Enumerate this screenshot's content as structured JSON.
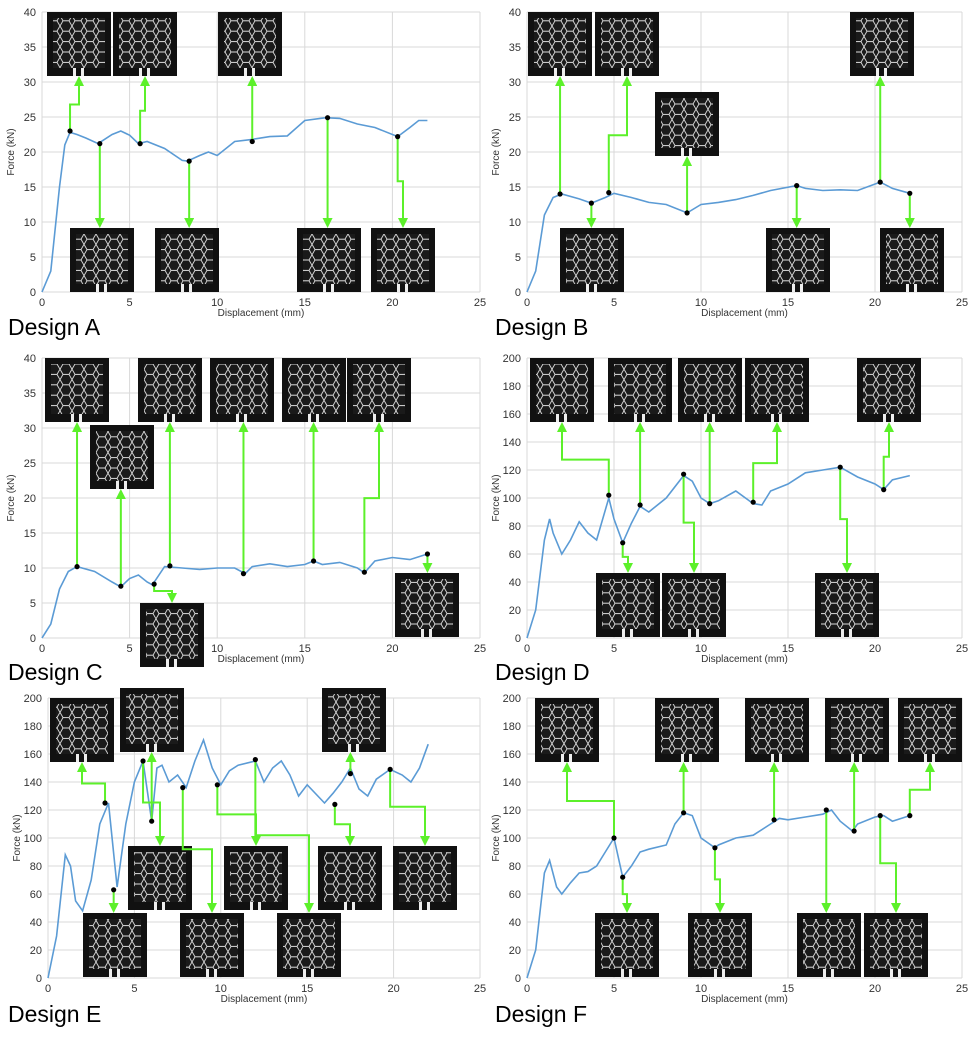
{
  "chart_data": [
    {
      "type": "line",
      "title": "Design A",
      "xlabel": "Displacement (mm)",
      "ylabel": "Force (kN)",
      "xlim": [
        0,
        25
      ],
      "xticks": [
        0,
        5,
        10,
        15,
        20,
        25
      ],
      "ylim": [
        0,
        40
      ],
      "yticks": [
        0,
        5,
        10,
        15,
        20,
        25,
        30,
        35,
        40
      ],
      "grid": true,
      "color": "#5b9bd5",
      "x": [
        0,
        0.5,
        1,
        1.3,
        1.6,
        2,
        2.5,
        3.2,
        4,
        4.5,
        5,
        5.5,
        6,
        7,
        8,
        8.3,
        9,
        9.5,
        10,
        11,
        12,
        13,
        14,
        15,
        16.2,
        17,
        18,
        19,
        20.3,
        21,
        21.5,
        22
      ],
      "values": [
        0,
        3,
        15,
        21,
        22.8,
        22.5,
        22,
        21.2,
        22.5,
        23,
        22.4,
        21.2,
        21.5,
        20.5,
        18.8,
        18.7,
        19.5,
        20,
        19.5,
        21.5,
        21.8,
        22.2,
        22.3,
        24.5,
        24.9,
        24.8,
        24,
        23.5,
        22.2,
        23.5,
        24.5,
        24.5
      ],
      "markers": {
        "color": "#000000",
        "x": [
          1.6,
          3.3,
          5.6,
          8.4,
          12,
          16.3,
          20.3
        ],
        "values": [
          23,
          21.2,
          21.2,
          18.7,
          21.5,
          24.9,
          22.2
        ]
      }
    },
    {
      "type": "line",
      "title": "Design B",
      "xlabel": "Displacement (mm)",
      "ylabel": "Force (kN)",
      "xlim": [
        0,
        25
      ],
      "xticks": [
        0,
        5,
        10,
        15,
        20,
        25
      ],
      "ylim": [
        0,
        40
      ],
      "yticks": [
        0,
        5,
        10,
        15,
        20,
        25,
        30,
        35,
        40
      ],
      "grid": true,
      "color": "#5b9bd5",
      "x": [
        0,
        0.5,
        1,
        1.5,
        2,
        3,
        3.7,
        4.5,
        5,
        6,
        7,
        8,
        9.2,
        10,
        11,
        12,
        13,
        14,
        15.5,
        16,
        17,
        18,
        19,
        20.3,
        21,
        22
      ],
      "values": [
        0,
        3,
        11,
        13.5,
        14,
        13.3,
        12.7,
        13.5,
        14.1,
        13.5,
        12.8,
        12.5,
        11.3,
        12.5,
        12.8,
        13.2,
        13.8,
        14.5,
        15.2,
        14.8,
        14.5,
        14.6,
        14.5,
        15.7,
        14.8,
        14.1
      ],
      "markers": {
        "color": "#000000",
        "x": [
          1.9,
          3.7,
          4.7,
          9.2,
          15.5,
          20.3,
          22
        ],
        "values": [
          14,
          12.7,
          14.2,
          11.3,
          15.2,
          15.7,
          14.1
        ]
      }
    },
    {
      "type": "line",
      "title": "Design C",
      "xlabel": "Displacement (mm)",
      "ylabel": "Force (kN)",
      "xlim": [
        0,
        25
      ],
      "xticks": [
        0,
        5,
        10,
        15,
        20,
        25
      ],
      "ylim": [
        0,
        40
      ],
      "yticks": [
        0,
        5,
        10,
        15,
        20,
        25,
        30,
        35,
        40
      ],
      "grid": true,
      "color": "#5b9bd5",
      "x": [
        0,
        0.5,
        1,
        1.5,
        2,
        3,
        4,
        4.5,
        5,
        5.5,
        6,
        6.3,
        7,
        8,
        9,
        10,
        11,
        11.6,
        12,
        13,
        14,
        15,
        15.5,
        16,
        17,
        18,
        18.4,
        19,
        20,
        21,
        22
      ],
      "values": [
        0,
        2,
        7,
        9.5,
        10.2,
        9.5,
        8,
        7.3,
        8.5,
        9,
        8,
        7.6,
        10.2,
        10,
        9.8,
        10,
        10,
        9.2,
        10.2,
        10.6,
        10.2,
        10.5,
        11,
        10.5,
        10.8,
        10,
        9.3,
        11,
        11.5,
        11.2,
        12
      ],
      "markers": {
        "color": "#000000",
        "x": [
          2,
          4.5,
          6.4,
          7.3,
          11.5,
          15.5,
          18.4,
          22
        ],
        "values": [
          10.2,
          7.4,
          7.7,
          10.3,
          9.2,
          11,
          9.4,
          12
        ]
      }
    },
    {
      "type": "line",
      "title": "Design D",
      "xlabel": "Displacement (mm)",
      "ylabel": "Force (kN)",
      "xlim": [
        0,
        25
      ],
      "xticks": [
        0,
        5,
        10,
        15,
        20,
        25
      ],
      "ylim": [
        0,
        200
      ],
      "yticks": [
        0,
        20,
        40,
        60,
        80,
        100,
        120,
        140,
        160,
        180,
        200
      ],
      "grid": true,
      "color": "#5b9bd5",
      "x": [
        0,
        0.5,
        1,
        1.3,
        1.5,
        2,
        2.5,
        3,
        3.5,
        4,
        4.7,
        5,
        5.5,
        6,
        6.5,
        7,
        8,
        9,
        9.5,
        10,
        10.5,
        11,
        12,
        13,
        13.5,
        14,
        15,
        16,
        17,
        18,
        19,
        20,
        20.5,
        21,
        22
      ],
      "values": [
        0,
        20,
        70,
        85,
        75,
        60,
        70,
        83,
        75,
        70,
        100,
        85,
        68,
        82,
        94,
        90,
        100,
        116,
        112,
        100,
        96,
        98,
        105,
        96,
        95,
        105,
        110,
        118,
        120,
        122,
        115,
        110,
        106,
        113,
        116
      ],
      "markers": {
        "color": "#000000",
        "x": [
          4.7,
          5.5,
          6.5,
          9,
          10.5,
          13,
          18,
          20.5
        ],
        "values": [
          102,
          68,
          95,
          117,
          96,
          97,
          122,
          106
        ]
      }
    },
    {
      "type": "line",
      "title": "Design E",
      "xlabel": "Displacement (mm)",
      "ylabel": "Force (kN)",
      "xlim": [
        0,
        25
      ],
      "xticks": [
        0,
        5,
        10,
        15,
        20,
        25
      ],
      "ylim": [
        0,
        200
      ],
      "yticks": [
        0,
        20,
        40,
        60,
        80,
        100,
        120,
        140,
        160,
        180,
        200
      ],
      "grid": true,
      "color": "#5b9bd5",
      "x": [
        0,
        0.5,
        1,
        1.3,
        1.6,
        2,
        2.5,
        3,
        3.5,
        4,
        4.5,
        5,
        5.5,
        6,
        6.3,
        6.6,
        7,
        7.5,
        8,
        8.5,
        9,
        9.5,
        10,
        10.5,
        11,
        12,
        12.5,
        13,
        13.5,
        14,
        14.5,
        15,
        16,
        16.5,
        17,
        17.5,
        18,
        18.5,
        19,
        19.8,
        20.5,
        21,
        21.5,
        22
      ],
      "values": [
        0,
        30,
        88,
        80,
        55,
        48,
        70,
        110,
        125,
        65,
        110,
        140,
        155,
        112,
        150,
        152,
        140,
        145,
        136,
        155,
        170,
        150,
        138,
        148,
        152,
        155,
        140,
        150,
        155,
        145,
        130,
        138,
        125,
        132,
        140,
        150,
        135,
        130,
        142,
        149,
        145,
        140,
        150,
        167
      ],
      "markers": {
        "color": "#000000",
        "x": [
          3.3,
          3.8,
          5.5,
          6,
          7.8,
          9.8,
          12,
          16.6,
          17.5,
          19.8
        ],
        "values": [
          125,
          63,
          155,
          112,
          136,
          138,
          156,
          124,
          146,
          149
        ]
      }
    },
    {
      "type": "line",
      "title": "Design F",
      "xlabel": "Displacement (mm)",
      "ylabel": "Force (kN)",
      "xlim": [
        0,
        25
      ],
      "xticks": [
        0,
        5,
        10,
        15,
        20,
        25
      ],
      "ylim": [
        0,
        200
      ],
      "yticks": [
        0,
        20,
        40,
        60,
        80,
        100,
        120,
        140,
        160,
        180,
        200
      ],
      "grid": true,
      "color": "#5b9bd5",
      "x": [
        0,
        0.5,
        1,
        1.3,
        1.7,
        2,
        2.5,
        3,
        3.5,
        4,
        4.5,
        5,
        5.5,
        6,
        6.5,
        7,
        8,
        8.5,
        9,
        9.5,
        10,
        10.8,
        11,
        12,
        13,
        14,
        14.5,
        15,
        16,
        17,
        17.5,
        18,
        18.7,
        19,
        20,
        20.5,
        21,
        22
      ],
      "values": [
        0,
        20,
        75,
        84,
        65,
        60,
        68,
        75,
        76,
        80,
        90,
        100,
        72,
        80,
        90,
        92,
        95,
        110,
        118,
        116,
        100,
        93,
        95,
        100,
        102,
        110,
        114,
        113,
        115,
        117,
        120,
        112,
        105,
        110,
        115,
        116,
        112,
        116
      ],
      "markers": {
        "color": "#000000",
        "x": [
          5,
          5.5,
          9,
          10.8,
          14.2,
          17.2,
          18.8,
          20.3,
          22
        ],
        "values": [
          100,
          72,
          118,
          93,
          113,
          120,
          105,
          116,
          116
        ]
      }
    }
  ]
}
